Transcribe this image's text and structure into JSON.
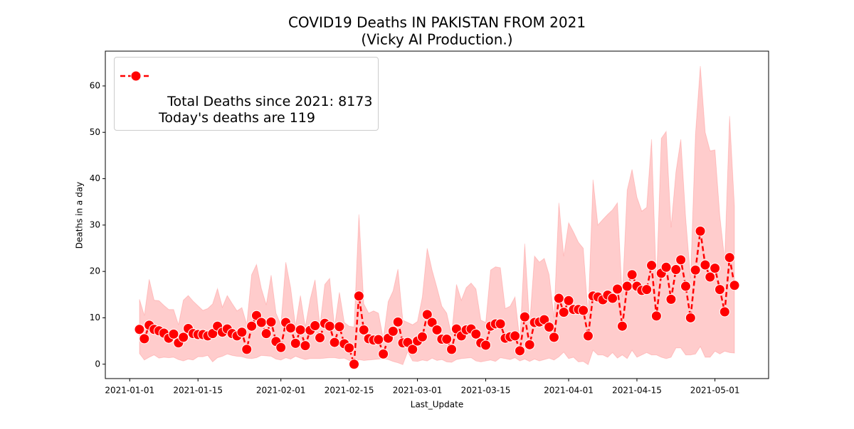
{
  "chart_data": {
    "type": "line",
    "title": "COVID19 Deaths IN PAKISTAN FROM 2021",
    "subtitle": "(Vicky AI Production.)",
    "x_label": "Last_Update",
    "y_label": "Deaths in a day",
    "x": [
      "2021-01-03",
      "2021-01-04",
      "2021-01-05",
      "2021-01-06",
      "2021-01-07",
      "2021-01-08",
      "2021-01-09",
      "2021-01-10",
      "2021-01-11",
      "2021-01-12",
      "2021-01-13",
      "2021-01-14",
      "2021-01-15",
      "2021-01-16",
      "2021-01-17",
      "2021-01-18",
      "2021-01-19",
      "2021-01-20",
      "2021-01-21",
      "2021-01-22",
      "2021-01-23",
      "2021-01-24",
      "2021-01-25",
      "2021-01-26",
      "2021-01-27",
      "2021-01-28",
      "2021-01-29",
      "2021-01-30",
      "2021-01-31",
      "2021-02-01",
      "2021-02-02",
      "2021-02-03",
      "2021-02-04",
      "2021-02-05",
      "2021-02-06",
      "2021-02-07",
      "2021-02-08",
      "2021-02-09",
      "2021-02-10",
      "2021-02-11",
      "2021-02-12",
      "2021-02-13",
      "2021-02-14",
      "2021-02-15",
      "2021-02-16",
      "2021-02-17",
      "2021-02-18",
      "2021-02-19",
      "2021-02-20",
      "2021-02-21",
      "2021-02-22",
      "2021-02-23",
      "2021-02-24",
      "2021-02-25",
      "2021-02-26",
      "2021-02-27",
      "2021-02-28",
      "2021-03-01",
      "2021-03-02",
      "2021-03-03",
      "2021-03-04",
      "2021-03-05",
      "2021-03-06",
      "2021-03-07",
      "2021-03-08",
      "2021-03-09",
      "2021-03-10",
      "2021-03-11",
      "2021-03-12",
      "2021-03-13",
      "2021-03-14",
      "2021-03-15",
      "2021-03-16",
      "2021-03-17",
      "2021-03-18",
      "2021-03-19",
      "2021-03-20",
      "2021-03-21",
      "2021-03-22",
      "2021-03-23",
      "2021-03-24",
      "2021-03-25",
      "2021-03-26",
      "2021-03-27",
      "2021-03-28",
      "2021-03-29",
      "2021-03-30",
      "2021-03-31",
      "2021-04-01",
      "2021-04-02",
      "2021-04-03",
      "2021-04-04",
      "2021-04-05",
      "2021-04-06",
      "2021-04-07",
      "2021-04-08",
      "2021-04-09",
      "2021-04-10",
      "2021-04-11",
      "2021-04-12",
      "2021-04-13",
      "2021-04-14",
      "2021-04-15",
      "2021-04-16",
      "2021-04-17",
      "2021-04-18",
      "2021-04-19",
      "2021-04-20",
      "2021-04-21",
      "2021-04-22",
      "2021-04-23",
      "2021-04-24",
      "2021-04-25",
      "2021-04-26",
      "2021-04-27",
      "2021-04-28",
      "2021-04-29",
      "2021-04-30",
      "2021-05-01",
      "2021-05-02",
      "2021-05-03",
      "2021-05-04",
      "2021-05-05"
    ],
    "series": [
      {
        "name": "Total Deaths since 2021: 8173\nToday's deaths are 119",
        "color": "#ff0000",
        "band_color": "#ff0000",
        "values": [
          7.5,
          5.5,
          8.4,
          7.5,
          7.2,
          6.7,
          5.6,
          6.5,
          4.6,
          5.8,
          7.7,
          6.6,
          6.4,
          6.4,
          6.1,
          6.6,
          8.2,
          6.9,
          7.6,
          6.6,
          6.1,
          6.9,
          3.2,
          8.2,
          10.5,
          9.0,
          6.6,
          9.1,
          4.9,
          3.6,
          9.0,
          7.8,
          4.5,
          7.4,
          4.0,
          7.3,
          8.3,
          5.7,
          8.8,
          8.2,
          4.7,
          8.1,
          4.4,
          3.5,
          0,
          14.7,
          7.4,
          5.5,
          5.2,
          5.3,
          2.2,
          5.6,
          7.1,
          9.1,
          4.6,
          4.7,
          3.2,
          5.0,
          5.9,
          10.7,
          9.0,
          7.4,
          5.4,
          5.4,
          3.2,
          7.6,
          6.1,
          7.4,
          7.6,
          6.5,
          4.6,
          4.1,
          8.2,
          8.7,
          8.7,
          5.6,
          5.9,
          6.1,
          2.9,
          10.2,
          4.2,
          9.0,
          9.1,
          9.6,
          8.0,
          5.8,
          14.2,
          11.2,
          13.7,
          11.8,
          11.8,
          11.6,
          6.1,
          14.7,
          14.5,
          13.9,
          14.9,
          14.2,
          16.2,
          8.2,
          16.8,
          19.3,
          16.8,
          15.9,
          16.1,
          21.3,
          10.4,
          19.6,
          20.9,
          14.0,
          20.4,
          22.5,
          16.8,
          10.0,
          20.3,
          28.7,
          21.4,
          18.8,
          20.7,
          16.1,
          11.3,
          23.0,
          17.0
        ],
        "upper": [
          14,
          10.5,
          18.3,
          13.8,
          13.7,
          12.7,
          11.8,
          11.8,
          8.5,
          13.8,
          14.8,
          13.6,
          12.6,
          11.6,
          12.0,
          13.0,
          16.3,
          12.3,
          14.8,
          13.1,
          11.5,
          12.2,
          8.6,
          19.3,
          21.5,
          16.3,
          12.8,
          19.2,
          11.0,
          8.5,
          22.0,
          16.5,
          8.2,
          14.8,
          8.0,
          14.0,
          18.2,
          8.2,
          17.2,
          18.5,
          8.0,
          15.5,
          9.0,
          8.2,
          8.0,
          32.3,
          13.0,
          11.0,
          11.5,
          11.0,
          5.5,
          13.5,
          15.8,
          20.5,
          9.5,
          9.0,
          8.5,
          9.2,
          14.5,
          25.0,
          20.3,
          16.5,
          12.5,
          11.0,
          6.3,
          17.2,
          13.8,
          16.5,
          17.5,
          16.2,
          9.5,
          9.0,
          20.3,
          21.0,
          20.8,
          12.0,
          12.5,
          14.5,
          5.0,
          26.0,
          8.5,
          23.3,
          22.0,
          22.8,
          19.3,
          10.0,
          34.8,
          23.3,
          30.5,
          28.5,
          26.3,
          25.0,
          10.5,
          39.8,
          30.0,
          31.2,
          32.3,
          33.3,
          34.8,
          14.5,
          37.5,
          42.0,
          36.0,
          33.0,
          33.8,
          48.5,
          17.0,
          48.7,
          50.2,
          29.5,
          41.5,
          48.5,
          31.5,
          18.5,
          49.5,
          64.3,
          50.0,
          46.0,
          46.2,
          32.0,
          22.5,
          53.5,
          34.0
        ],
        "lower": [
          2.3,
          0.9,
          1.5,
          2.0,
          1.3,
          1.5,
          1.4,
          1.5,
          1.0,
          0.7,
          1.1,
          0.9,
          1.6,
          1.6,
          1.9,
          0.5,
          1.4,
          1.7,
          2.2,
          1.9,
          1.7,
          1.6,
          1.3,
          1.2,
          1.4,
          1.9,
          1.8,
          1.7,
          1.1,
          0.9,
          1.4,
          1.1,
          1.7,
          1.3,
          1.0,
          1.2,
          1.2,
          1.2,
          1.3,
          1.4,
          1.4,
          1.2,
          1.3,
          0.8,
          0.0,
          1.0,
          0.8,
          0.9,
          1.0,
          1.1,
          1.2,
          1.0,
          0.6,
          0.3,
          -0.1,
          2.7,
          0.7,
          0.6,
          0.9,
          0.7,
          1.3,
          0.8,
          1.0,
          0.5,
          0.4,
          1.0,
          1.2,
          1.3,
          1.4,
          0.7,
          0.5,
          0.7,
          0.9,
          0.6,
          1.4,
          1.2,
          1.0,
          1.4,
          0.7,
          1.1,
          0.6,
          1.1,
          0.7,
          1.0,
          1.3,
          0.9,
          1.6,
          2.6,
          1.2,
          1.5,
          0.5,
          0.6,
          -0.1,
          3.0,
          2.0,
          2.0,
          1.5,
          2.5,
          1.3,
          2.0,
          1.2,
          3.0,
          1.5,
          2.0,
          2.5,
          2.0,
          2.0,
          1.5,
          1.2,
          1.5,
          3.5,
          3.5,
          2.0,
          2.0,
          2.2,
          3.8,
          1.5,
          1.5,
          2.8,
          2.2,
          2.8,
          2.5,
          2.4
        ]
      }
    ],
    "xlim": [
      "2020-12-27",
      "2021-05-12"
    ],
    "xticks": [
      "2021-01-01",
      "2021-01-15",
      "2021-02-01",
      "2021-02-15",
      "2021-03-01",
      "2021-03-15",
      "2021-04-01",
      "2021-04-15",
      "2021-05-01"
    ],
    "ylim": [
      -3.1,
      67.5
    ],
    "yticks": [
      0,
      10,
      20,
      30,
      40,
      50,
      60
    ],
    "legend": "upper-left"
  }
}
